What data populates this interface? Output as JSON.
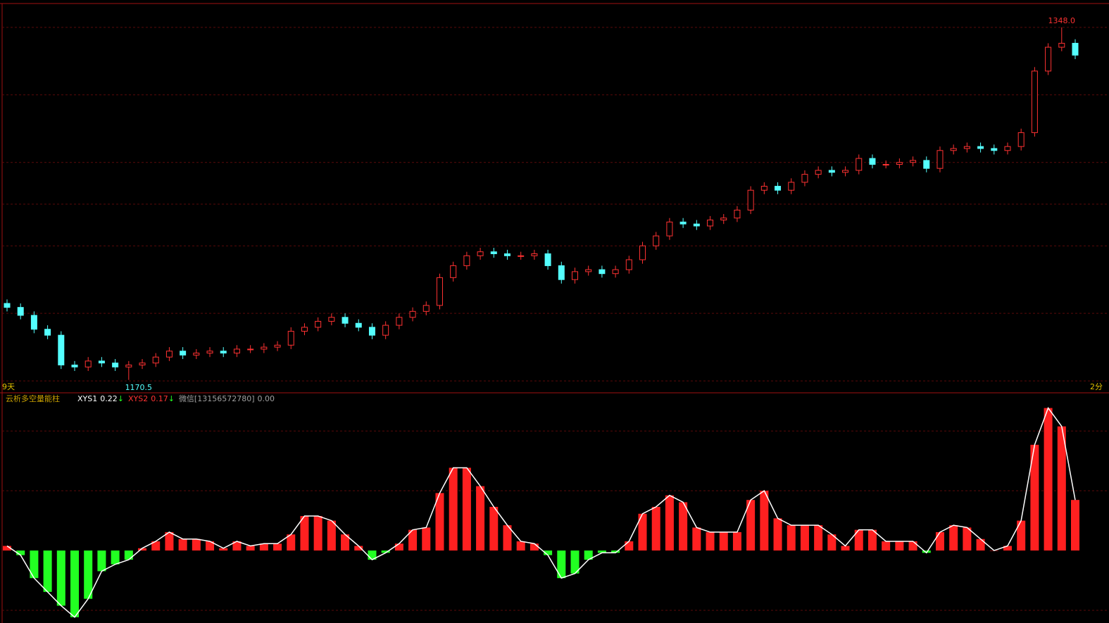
{
  "chart_data": [
    {
      "type": "candlestick",
      "up_color": "#ff3232",
      "down_color": "#54ffff",
      "grid_color": "#5a0a0a",
      "ylim": [
        1164,
        1360
      ],
      "gridlines": [
        1170,
        1204,
        1238,
        1259,
        1280,
        1314,
        1348
      ],
      "left_label": "9天",
      "right_label": "2分",
      "max_label": {
        "value": 1348,
        "label": "1348.0"
      },
      "min_label": 1170.5,
      "open": [
        1209,
        1207,
        1203,
        1196,
        1193,
        1178,
        1177,
        1180,
        1179,
        1177,
        1178,
        1179,
        1182,
        1185,
        1183,
        1184,
        1185,
        1184,
        1186,
        1186,
        1187,
        1188,
        1195,
        1197,
        1200,
        1202,
        1199,
        1197,
        1193,
        1198,
        1202,
        1205,
        1208,
        1222,
        1228,
        1233,
        1235,
        1234,
        1233,
        1233,
        1234,
        1228,
        1221,
        1225,
        1226,
        1224,
        1226,
        1231,
        1238,
        1243,
        1250,
        1249,
        1248,
        1251,
        1252,
        1256,
        1266,
        1268,
        1266,
        1270,
        1274,
        1276,
        1275,
        1276,
        1282,
        1279,
        1279,
        1280,
        1281,
        1277,
        1286,
        1287,
        1288,
        1287,
        1286,
        1288,
        1295,
        1326,
        1338,
        1340
      ],
      "high": [
        1211,
        1209,
        1205,
        1198,
        1195,
        1180,
        1182,
        1182,
        1181,
        1180,
        1181,
        1184,
        1187,
        1187,
        1186,
        1187,
        1187,
        1188,
        1188,
        1189,
        1190,
        1197,
        1199,
        1202,
        1204,
        1204,
        1201,
        1199,
        1200,
        1204,
        1207,
        1210,
        1224,
        1230,
        1235,
        1237,
        1237,
        1236,
        1235,
        1236,
        1236,
        1230,
        1227,
        1228,
        1228,
        1228,
        1233,
        1240,
        1245,
        1252,
        1252,
        1251,
        1253,
        1254,
        1258,
        1268,
        1270,
        1270,
        1272,
        1276,
        1278,
        1278,
        1278,
        1284,
        1284,
        1281,
        1282,
        1283,
        1283,
        1288,
        1289,
        1290,
        1290,
        1289,
        1290,
        1297,
        1328,
        1340,
        1348,
        1342
      ],
      "low": [
        1205,
        1201,
        1194,
        1191,
        1176,
        1175,
        1175,
        1177,
        1175,
        1170.5,
        1176,
        1177,
        1180,
        1181,
        1181,
        1182,
        1182,
        1182,
        1184,
        1184,
        1185,
        1186,
        1193,
        1195,
        1198,
        1197,
        1195,
        1191,
        1191,
        1196,
        1200,
        1203,
        1206,
        1220,
        1226,
        1231,
        1232,
        1231,
        1231,
        1231,
        1226,
        1219,
        1219,
        1223,
        1222,
        1222,
        1224,
        1229,
        1236,
        1241,
        1247,
        1246,
        1246,
        1249,
        1250,
        1254,
        1264,
        1264,
        1264,
        1268,
        1272,
        1273,
        1273,
        1274,
        1277,
        1277,
        1277,
        1278,
        1275,
        1275,
        1284,
        1285,
        1285,
        1284,
        1284,
        1286,
        1293,
        1324,
        1336,
        1332
      ],
      "close": [
        1207,
        1203,
        1196,
        1193,
        1178,
        1177,
        1180,
        1179,
        1177,
        1178,
        1179,
        1182,
        1185,
        1183,
        1184,
        1185,
        1184,
        1186,
        1186,
        1187,
        1188,
        1195,
        1197,
        1200,
        1202,
        1199,
        1197,
        1193,
        1198,
        1202,
        1205,
        1208,
        1222,
        1228,
        1233,
        1235,
        1234,
        1233,
        1233,
        1234,
        1228,
        1221,
        1225,
        1226,
        1224,
        1226,
        1231,
        1238,
        1243,
        1250,
        1249,
        1248,
        1251,
        1252,
        1256,
        1266,
        1268,
        1266,
        1270,
        1274,
        1276,
        1275,
        1276,
        1282,
        1279,
        1279,
        1280,
        1281,
        1277,
        1286,
        1287,
        1288,
        1287,
        1286,
        1288,
        1295,
        1326,
        1338,
        1340,
        1334
      ]
    },
    {
      "type": "bar",
      "title": "云析多空量能柱",
      "legend": [
        {
          "name": "XYS1",
          "value": 0.22,
          "arrow": "↓",
          "color": "#ffffff"
        },
        {
          "name": "XYS2",
          "value": 0.17,
          "arrow": "↓",
          "color": "#ff3232"
        },
        {
          "name": "微信[13156572780]",
          "value": {
            "value": 0,
            "label": "0.00"
          },
          "color": "#a0a0a0"
        }
      ],
      "up_color": "#ff2020",
      "down_color": "#22ff22",
      "line_color": "#ffffff",
      "grid_color": "#5a0a0a",
      "ylim": [
        -0.3,
        0.68
      ],
      "gridlines": [
        -0.26,
        0.26,
        0.52
      ],
      "values": [
        0.02,
        -0.02,
        -0.12,
        -0.18,
        -0.24,
        -0.29,
        -0.21,
        -0.09,
        -0.06,
        -0.04,
        0.01,
        0.04,
        0.08,
        0.05,
        0.05,
        0.04,
        0.01,
        0.04,
        0.02,
        0.03,
        0.03,
        0.07,
        0.15,
        0.15,
        0.13,
        0.07,
        0.02,
        -0.04,
        -0.01,
        0.03,
        0.09,
        0.1,
        0.25,
        0.36,
        0.36,
        0.28,
        0.19,
        0.11,
        0.04,
        0.03,
        -0.02,
        -0.12,
        -0.1,
        -0.04,
        -0.01,
        -0.01,
        0.04,
        0.16,
        0.19,
        0.24,
        0.21,
        0.1,
        0.08,
        0.08,
        0.08,
        0.22,
        0.26,
        0.14,
        0.11,
        0.11,
        0.11,
        0.07,
        0.02,
        0.09,
        0.09,
        0.04,
        0.04,
        0.04,
        -0.01,
        0.08,
        0.11,
        0.1,
        0.05,
        0.0,
        0.02,
        0.13,
        0.46,
        0.62,
        0.54,
        0.22
      ]
    }
  ]
}
